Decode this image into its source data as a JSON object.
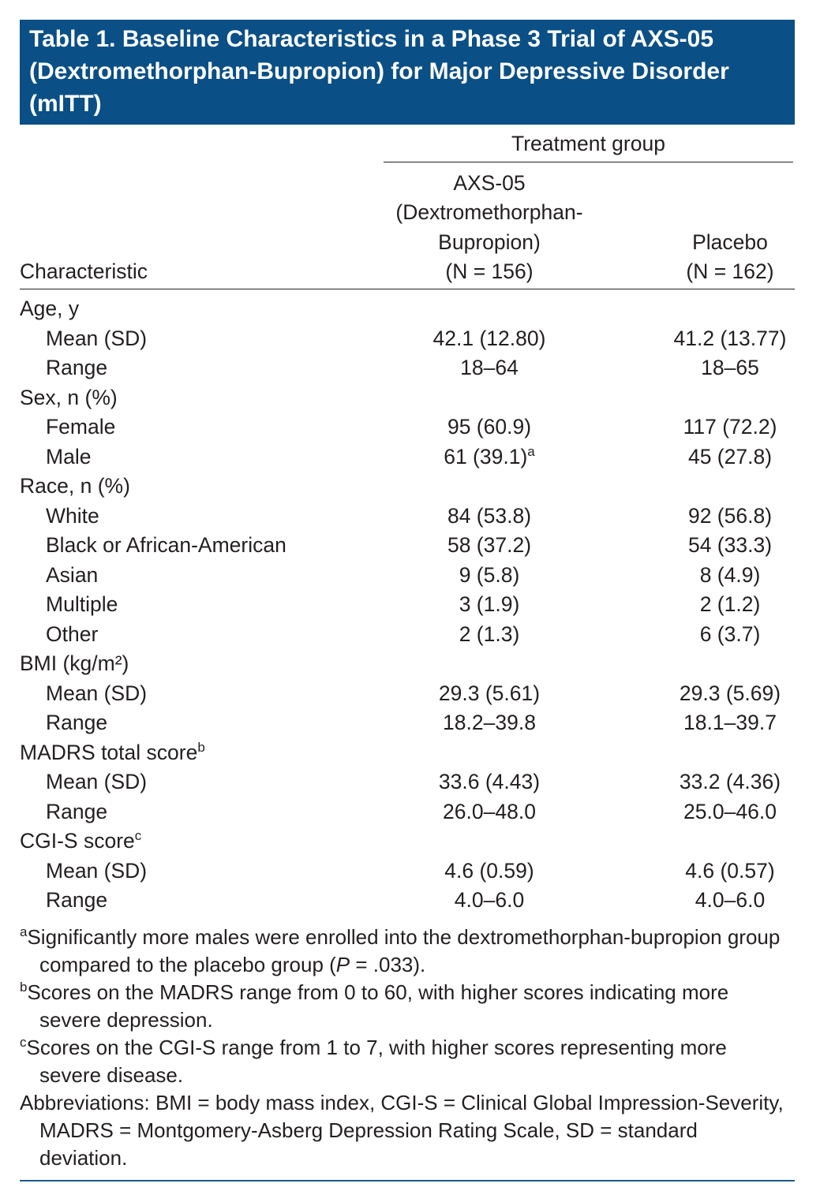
{
  "title": "Table 1. Baseline Characteristics in a Phase 3 Trial of AXS-05 (Dextromethorphan-Bupropion) for Major Depressive Disorder (mITT)",
  "table": {
    "spanner": "Treatment group",
    "columns": [
      {
        "lines": [
          "Characteristic"
        ]
      },
      {
        "lines": [
          "AXS-05",
          "(Dextromethorphan-",
          "Bupropion)",
          "(N = 156)"
        ]
      },
      {
        "lines": [
          "Placebo",
          "(N = 162)"
        ]
      }
    ],
    "sections": [
      {
        "label": "Age, y",
        "rows": [
          {
            "label": "Mean (SD)",
            "values": [
              "42.1 (12.80)",
              "41.2 (13.77)"
            ]
          },
          {
            "label": "Range",
            "values": [
              "18–64",
              "18–65"
            ]
          }
        ]
      },
      {
        "label": "Sex, n (%)",
        "rows": [
          {
            "label": "Female",
            "values": [
              "95 (60.9)",
              "117 (72.2)"
            ]
          },
          {
            "label": "Male",
            "values": [
              {
                "text": "61 (39.1)",
                "sup": "a"
              },
              "45 (27.8)"
            ]
          }
        ]
      },
      {
        "label": "Race, n (%)",
        "rows": [
          {
            "label": "White",
            "values": [
              "84 (53.8)",
              "92 (56.8)"
            ]
          },
          {
            "label": "Black or African-American",
            "values": [
              "58 (37.2)",
              "54 (33.3)"
            ]
          },
          {
            "label": "Asian",
            "values": [
              "9 (5.8)",
              "8 (4.9)"
            ]
          },
          {
            "label": "Multiple",
            "values": [
              "3 (1.9)",
              "2 (1.2)"
            ]
          },
          {
            "label": "Other",
            "values": [
              "2 (1.3)",
              "6 (3.7)"
            ]
          }
        ]
      },
      {
        "label": "BMI (kg/m²)",
        "rows": [
          {
            "label": "Mean (SD)",
            "values": [
              "29.3 (5.61)",
              "29.3 (5.69)"
            ]
          },
          {
            "label": "Range",
            "values": [
              "18.2–39.8",
              "18.1–39.7"
            ]
          }
        ]
      },
      {
        "label": "MADRS total score",
        "sup": "b",
        "rows": [
          {
            "label": "Mean (SD)",
            "values": [
              "33.6 (4.43)",
              "33.2 (4.36)"
            ]
          },
          {
            "label": "Range",
            "values": [
              "26.0–48.0",
              "25.0–46.0"
            ]
          }
        ]
      },
      {
        "label": "CGI-S score",
        "sup": "c",
        "rows": [
          {
            "label": "Mean (SD)",
            "values": [
              "4.6 (0.59)",
              "4.6 (0.57)"
            ]
          },
          {
            "label": "Range",
            "values": [
              "4.0–6.0",
              "4.0–6.0"
            ]
          }
        ]
      }
    ]
  },
  "footnotes": [
    {
      "mark": "a",
      "text": "Significantly more males were enrolled into the dextromethorphan-bupropion group compared to the placebo group (",
      "italic": "P",
      "after": " = .033)."
    },
    {
      "mark": "b",
      "text": "Scores on the MADRS range from 0 to 60, with higher scores indicating more severe depression."
    },
    {
      "mark": "c",
      "text": "Scores on the CGI-S range from 1 to 7, with higher scores representing more severe disease."
    },
    {
      "text": "Abbreviations: BMI = body mass index, CGI-S = Clinical Global Impression-Severity, MADRS = Montgomery-Asberg Depression Rating Scale, SD = standard deviation."
    }
  ]
}
